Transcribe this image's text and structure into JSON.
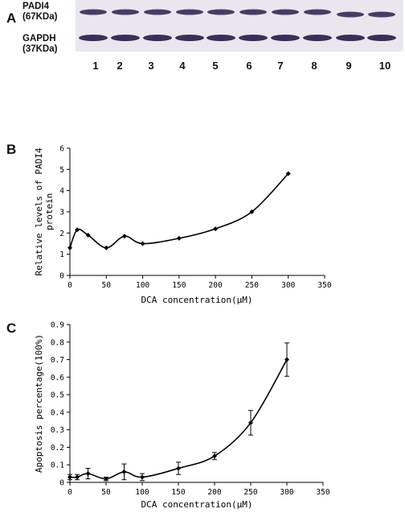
{
  "figure": {
    "panels": [
      {
        "letter": "A"
      },
      {
        "letter": "B"
      },
      {
        "letter": "C"
      }
    ]
  },
  "blot": {
    "rows": [
      {
        "name": "PADI4",
        "size": "(67KDa)"
      },
      {
        "name": "GAPDH",
        "size": "(37KDa)"
      }
    ],
    "lanes": [
      "1",
      "2",
      "3",
      "4",
      "5",
      "6",
      "7",
      "8",
      "9",
      "10"
    ],
    "band_color": "#2a1f4a",
    "background_color": "#e9e6f0"
  },
  "chart_data": [
    {
      "type": "line",
      "xlabel": "DCA concentration(μM)",
      "ylabel": "Relative levels of PADI4 protein",
      "xlim": [
        0,
        350
      ],
      "ylim": [
        0,
        6
      ],
      "xticks": [
        "0",
        "50",
        "100",
        "150",
        "200",
        "250",
        "300",
        "350"
      ],
      "yticks": [
        "0",
        "1",
        "2",
        "3",
        "4",
        "5",
        "6"
      ],
      "grid": false,
      "x": [
        0,
        10,
        25,
        50,
        75,
        100,
        150,
        200,
        250,
        300
      ],
      "y": [
        1.3,
        2.15,
        1.9,
        1.3,
        1.85,
        1.5,
        1.75,
        2.2,
        3.0,
        4.8
      ],
      "marker": "diamond",
      "color": "#000000"
    },
    {
      "type": "line",
      "xlabel": "DCA concentration(μM)",
      "ylabel": "Apoptosis percentage(100%)",
      "xlim": [
        0,
        350
      ],
      "ylim": [
        0,
        0.9
      ],
      "xticks": [
        "0",
        "50",
        "100",
        "150",
        "200",
        "250",
        "300",
        "350"
      ],
      "yticks": [
        "0",
        "0.1",
        "0.2",
        "0.3",
        "0.4",
        "0.5",
        "0.6",
        "0.7",
        "0.8",
        "0.9"
      ],
      "grid": false,
      "x": [
        0,
        10,
        25,
        50,
        75,
        100,
        150,
        200,
        250,
        300
      ],
      "y": [
        0.03,
        0.03,
        0.05,
        0.02,
        0.06,
        0.03,
        0.08,
        0.15,
        0.34,
        0.7
      ],
      "yerr": [
        0.015,
        0.015,
        0.03,
        0.01,
        0.045,
        0.02,
        0.035,
        0.02,
        0.07,
        0.095
      ],
      "marker": "diamond",
      "color": "#000000"
    }
  ]
}
